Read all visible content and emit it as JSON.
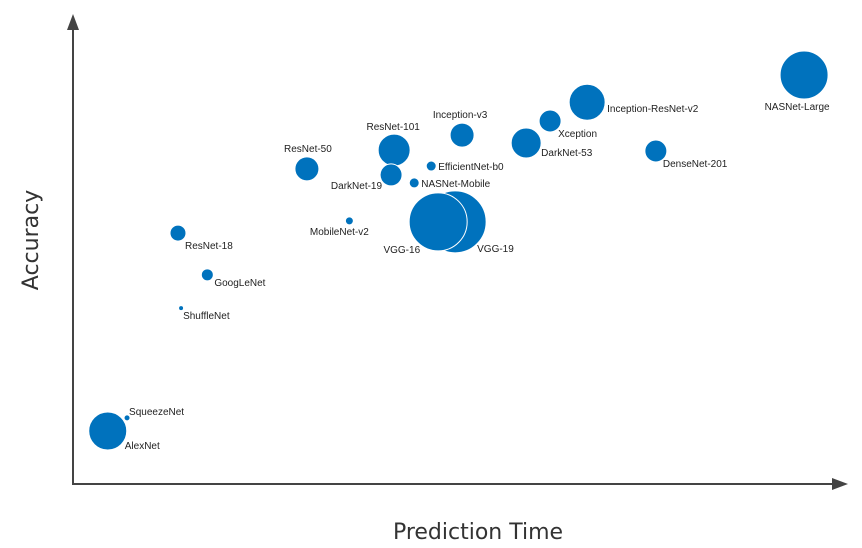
{
  "chart_data": {
    "type": "scatter",
    "variant": "bubble",
    "title": "",
    "xlabel": "Prediction Time",
    "ylabel": "Accuracy",
    "xlim": [
      0,
      100
    ],
    "ylim": [
      0,
      100
    ],
    "grid": false,
    "ticks_shown": false,
    "color": "#0072BD",
    "points": [
      {
        "name": "AlexNet",
        "x": 4.5,
        "y": 11.3,
        "size": 19
      },
      {
        "name": "SqueezeNet",
        "x": 7.0,
        "y": 14.1,
        "size": 3
      },
      {
        "name": "ShuffleNet",
        "x": 14.0,
        "y": 37.5,
        "size": 2.5
      },
      {
        "name": "GoogLeNet",
        "x": 17.4,
        "y": 44.6,
        "size": 6
      },
      {
        "name": "ResNet-18",
        "x": 13.6,
        "y": 53.5,
        "size": 8
      },
      {
        "name": "MobileNet-v2",
        "x": 35.8,
        "y": 56.1,
        "size": 4
      },
      {
        "name": "ResNet-50",
        "x": 30.3,
        "y": 67.2,
        "size": 12
      },
      {
        "name": "DarkNet-19",
        "x": 41.2,
        "y": 65.9,
        "size": 11
      },
      {
        "name": "ResNet-101",
        "x": 41.6,
        "y": 71.2,
        "size": 16
      },
      {
        "name": "EfficientNet-b0",
        "x": 46.4,
        "y": 67.8,
        "size": 5
      },
      {
        "name": "NASNet-Mobile",
        "x": 44.2,
        "y": 64.2,
        "size": 5
      },
      {
        "name": "VGG-16",
        "x": 47.3,
        "y": 55.9,
        "size": 29
      },
      {
        "name": "VGG-19",
        "x": 49.5,
        "y": 55.9,
        "size": 31
      },
      {
        "name": "Inception-v3",
        "x": 50.4,
        "y": 74.4,
        "size": 12
      },
      {
        "name": "DarkNet-53",
        "x": 58.7,
        "y": 72.7,
        "size": 15
      },
      {
        "name": "Xception",
        "x": 61.8,
        "y": 77.4,
        "size": 11
      },
      {
        "name": "Inception-ResNet-v2",
        "x": 66.6,
        "y": 81.4,
        "size": 18
      },
      {
        "name": "DenseNet-201",
        "x": 75.5,
        "y": 71.0,
        "size": 11
      },
      {
        "name": "NASNet-Large",
        "x": 94.7,
        "y": 87.2,
        "size": 24
      }
    ]
  }
}
